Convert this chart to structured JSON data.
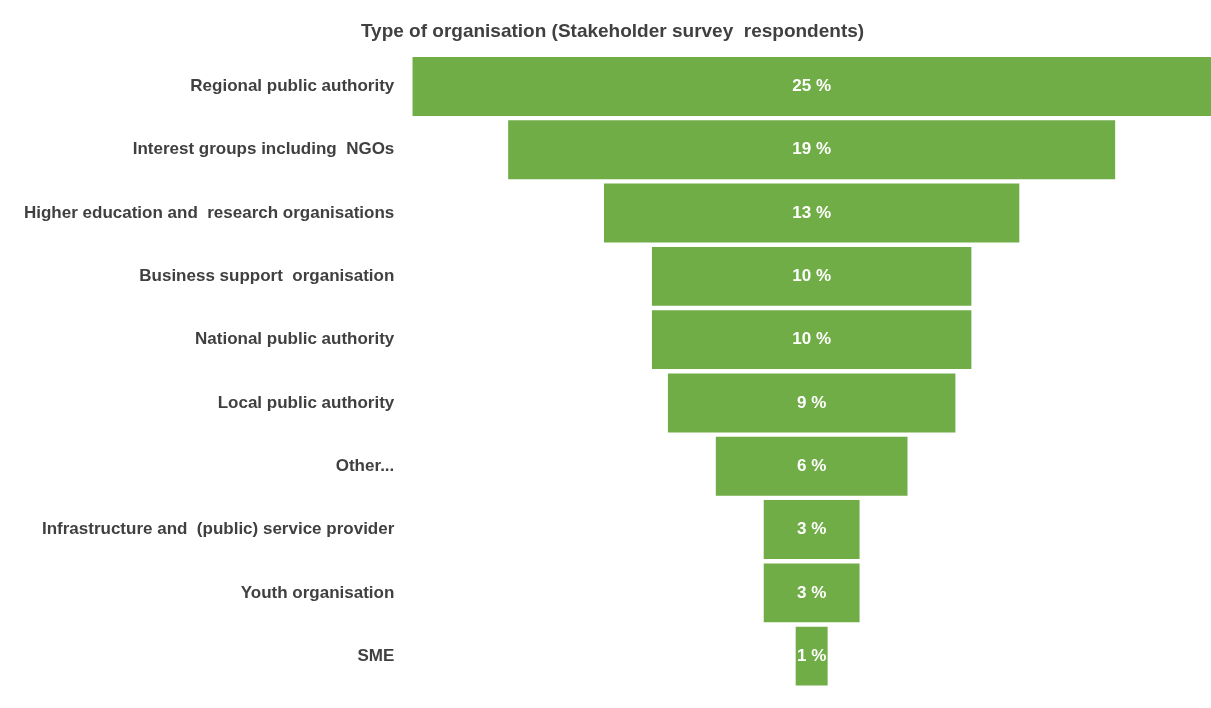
{
  "chart_data": {
    "type": "other",
    "title": "Type of organisation (Stakeholder survey  respondents)",
    "categories": [
      "Regional public authority",
      "Interest groups including  NGOs",
      "Higher education and  research organisations",
      "Business support  organisation",
      "National public authority",
      "Local public authority",
      "Other...",
      "Infrastructure and  (public) service provider",
      "Youth organisation",
      "SME"
    ],
    "values": [
      25,
      19,
      13,
      10,
      10,
      9,
      6,
      3,
      3,
      1
    ],
    "value_labels": [
      "25 %",
      "19 %",
      "13 %",
      "10 %",
      "10 %",
      "9 %",
      "6 %",
      "3 %",
      "3 %",
      "1 %"
    ],
    "color": "#70ad47"
  }
}
